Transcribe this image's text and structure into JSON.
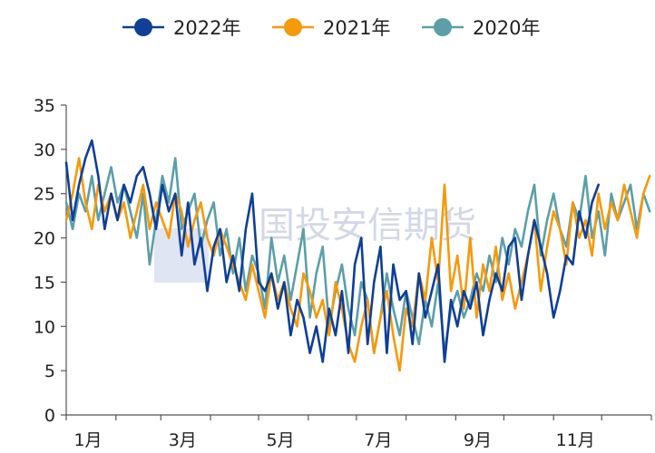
{
  "chart_data": {
    "type": "line",
    "title": "",
    "xlabel": "",
    "ylabel": "",
    "ylim": [
      0,
      35
    ],
    "yticks": [
      0,
      5,
      10,
      15,
      20,
      25,
      30,
      35
    ],
    "xlim": [
      1,
      366
    ],
    "xticks": [
      {
        "label": "1月",
        "day": 1
      },
      {
        "label": "3月",
        "day": 60
      },
      {
        "label": "5月",
        "day": 121
      },
      {
        "label": "7月",
        "day": 182
      },
      {
        "label": "9月",
        "day": 244
      },
      {
        "label": "11月",
        "day": 305
      }
    ],
    "grid": false,
    "legend_position": "top",
    "watermark": "国投安信期货",
    "series": [
      {
        "name": "2022年",
        "color": "#0f3f96",
        "x": [
          1,
          5,
          9,
          13,
          17,
          21,
          25,
          29,
          33,
          37,
          41,
          45,
          49,
          53,
          57,
          61,
          65,
          69,
          73,
          77,
          81,
          85,
          89,
          93,
          97,
          101,
          105,
          109,
          113,
          117,
          121,
          125,
          129,
          133,
          137,
          141,
          145,
          149,
          153,
          157,
          161,
          165,
          169,
          173,
          177,
          181,
          185,
          189,
          193,
          197,
          201,
          205,
          209,
          213,
          217,
          221,
          225,
          229,
          233,
          237,
          241,
          245,
          249,
          253,
          257,
          261,
          265,
          269,
          273,
          277,
          281,
          285,
          289,
          293,
          297,
          301,
          305,
          309,
          313,
          317,
          321,
          325,
          329,
          333
        ],
        "y": [
          28.5,
          22,
          26,
          29,
          31,
          27,
          21,
          25,
          22,
          26,
          24,
          27,
          28,
          25,
          21,
          26,
          23,
          25,
          18,
          24,
          17,
          20,
          14,
          19,
          21,
          15,
          18,
          14,
          21,
          25,
          15,
          14,
          16,
          12,
          15,
          9,
          13,
          11,
          7,
          10,
          6,
          12,
          9,
          14,
          7,
          17,
          20,
          8,
          15,
          19,
          7,
          17,
          13,
          14,
          8,
          16,
          11,
          14,
          17,
          6,
          13,
          10,
          14,
          12,
          15,
          9,
          13,
          16,
          14,
          19,
          20,
          13,
          18,
          22,
          19,
          16,
          11,
          14,
          18,
          17,
          23,
          20,
          24,
          26
        ]
      },
      {
        "name": "2021年",
        "color": "#f59a0c",
        "x": [
          1,
          5,
          9,
          13,
          17,
          21,
          25,
          29,
          33,
          37,
          41,
          45,
          49,
          53,
          57,
          61,
          65,
          69,
          73,
          77,
          81,
          85,
          89,
          93,
          97,
          101,
          105,
          109,
          113,
          117,
          121,
          125,
          129,
          133,
          137,
          141,
          145,
          149,
          153,
          157,
          161,
          165,
          169,
          173,
          177,
          181,
          185,
          189,
          193,
          197,
          201,
          205,
          209,
          213,
          217,
          221,
          225,
          229,
          233,
          237,
          241,
          245,
          249,
          253,
          257,
          261,
          265,
          269,
          273,
          277,
          281,
          285,
          289,
          293,
          297,
          301,
          305,
          309,
          313,
          317,
          321,
          325,
          329,
          333,
          337,
          341,
          345,
          349,
          353,
          357,
          361,
          365
        ],
        "y": [
          22,
          25,
          29,
          24,
          21,
          26,
          23,
          25,
          22,
          24,
          20,
          23,
          26,
          21,
          24,
          22,
          20,
          25,
          23,
          19,
          22,
          24,
          20,
          18,
          21,
          19,
          17,
          15,
          13,
          17,
          14,
          11,
          16,
          13,
          15,
          12,
          10,
          16,
          14,
          11,
          13,
          9,
          15,
          12,
          8,
          6,
          10,
          13,
          7,
          11,
          14,
          9,
          5,
          12,
          10,
          16,
          13,
          20,
          15,
          26,
          14,
          18,
          12,
          20,
          11,
          17,
          14,
          19,
          13,
          16,
          12,
          15,
          18,
          22,
          14,
          19,
          23,
          21,
          17,
          24,
          20,
          22,
          18,
          25,
          21,
          24,
          22,
          26,
          23,
          20,
          25,
          27
        ]
      },
      {
        "name": "2020年",
        "color": "#5c9fa8",
        "x": [
          1,
          5,
          9,
          13,
          17,
          21,
          25,
          29,
          33,
          37,
          41,
          45,
          49,
          53,
          57,
          61,
          65,
          69,
          73,
          77,
          81,
          85,
          89,
          93,
          97,
          101,
          105,
          109,
          113,
          117,
          121,
          125,
          129,
          133,
          137,
          141,
          145,
          149,
          153,
          157,
          161,
          165,
          169,
          173,
          177,
          181,
          185,
          189,
          193,
          197,
          201,
          205,
          209,
          213,
          217,
          221,
          225,
          229,
          233,
          237,
          241,
          245,
          249,
          253,
          257,
          261,
          265,
          269,
          273,
          277,
          281,
          285,
          289,
          293,
          297,
          301,
          305,
          309,
          313,
          317,
          321,
          325,
          329,
          333,
          337,
          341,
          345,
          349,
          353,
          357,
          361,
          365
        ],
        "y": [
          24,
          21,
          25,
          23,
          27,
          22,
          25,
          28,
          24,
          26,
          23,
          20,
          25,
          17,
          22,
          27,
          24,
          29,
          21,
          23,
          25,
          19,
          22,
          24,
          18,
          21,
          16,
          20,
          14,
          18,
          16,
          12,
          20,
          15,
          18,
          13,
          17,
          21,
          11,
          16,
          19,
          10,
          14,
          17,
          12,
          9,
          15,
          13,
          7,
          11,
          16,
          12,
          9,
          14,
          11,
          8,
          13,
          10,
          15,
          7,
          12,
          14,
          11,
          13,
          16,
          14,
          18,
          15,
          20,
          17,
          21,
          19,
          23,
          26,
          18,
          22,
          25,
          21,
          19,
          24,
          22,
          27,
          20,
          23,
          18,
          25,
          22,
          24,
          26,
          21,
          25,
          23
        ]
      }
    ]
  }
}
